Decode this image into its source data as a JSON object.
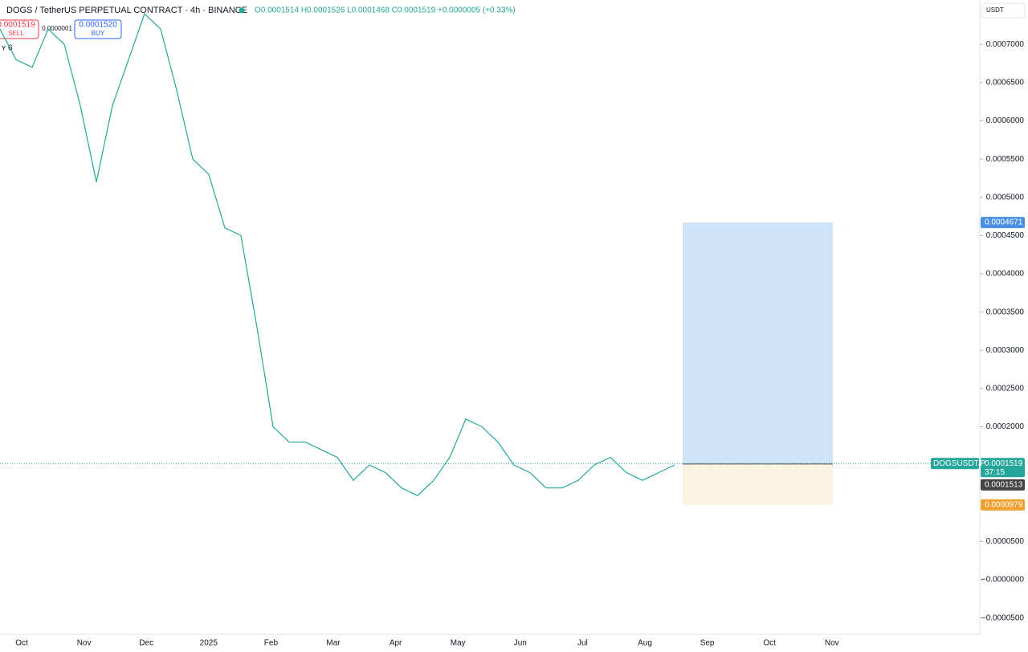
{
  "header": {
    "symbol": "DOGS / TetherUS PERPETUAL CONTRACT · 4h · BINANCE",
    "ohlc": "O0.0001514 H0.0001526 L0.0001468 C0.0001519 +0.0000005 (+0.33%)",
    "sell_price": "0.0001519",
    "sell": "SELL",
    "spread": "0.0000001",
    "buy_price": "0.0001520",
    "buy": "BUY",
    "currency": "USDT",
    "indicator": "ʏ 6"
  },
  "chart_data": {
    "type": "line",
    "color": "#26a69a",
    "x_labels": [
      "Oct",
      "Nov",
      "Dec",
      "2025",
      "Feb",
      "Mar",
      "Apr",
      "May",
      "Jun",
      "Jul",
      "Aug",
      "Sep",
      "Oct",
      "Nov"
    ],
    "values": [
      0.00072,
      0.00068,
      0.00067,
      0.00072,
      0.0007,
      0.00062,
      0.00052,
      0.00062,
      0.00068,
      0.00074,
      0.00072,
      0.00064,
      0.00055,
      0.00053,
      0.00046,
      0.00045,
      0.00033,
      0.0002,
      0.00018,
      0.00018,
      0.00017,
      0.00016,
      0.00013,
      0.00015,
      0.00014,
      0.00012,
      0.00011,
      0.00013,
      0.00016,
      0.00021,
      0.0002,
      0.00018,
      0.00015,
      0.00014,
      0.00012,
      0.00012,
      0.00013,
      0.00015,
      0.00016,
      0.00014,
      0.00013,
      0.00014,
      0.00015
    ],
    "ylim": [
      -5.25e-05,
      0.000758
    ],
    "yticks": [
      {
        "value": 0.0007,
        "label": "0.0007000"
      },
      {
        "value": 0.00065,
        "label": "0.0006500"
      },
      {
        "value": 0.0006,
        "label": "0.0006000"
      },
      {
        "value": 0.00055,
        "label": "0.0005500"
      },
      {
        "value": 0.0005,
        "label": "0.0005000"
      },
      {
        "value": 0.00045,
        "label": "0.0004500"
      },
      {
        "value": 0.0004,
        "label": "0.0004000"
      },
      {
        "value": 0.00035,
        "label": "0.0003500"
      },
      {
        "value": 0.0003,
        "label": "0.0003000"
      },
      {
        "value": 0.00025,
        "label": "0.0002500"
      },
      {
        "value": 0.0002,
        "label": "0.0002000"
      },
      {
        "value": 5e-05,
        "label": "0.0000500"
      },
      {
        "value": 0,
        "label": "−0.0000000"
      },
      {
        "value": -5e-05,
        "label": "−0.0000500"
      }
    ],
    "current_price": {
      "value": 0.0001519,
      "label": "0.0001519"
    },
    "symbol_label": "DOGSUSDT.P",
    "countdown": "37:15",
    "position": {
      "target": {
        "value": 0.0004671,
        "label": "0.0004671"
      },
      "entry": {
        "value": 0.0001513,
        "label": "0.0001513"
      },
      "stop": {
        "value": 9.79e-05,
        "label": "0.0000979"
      }
    }
  }
}
